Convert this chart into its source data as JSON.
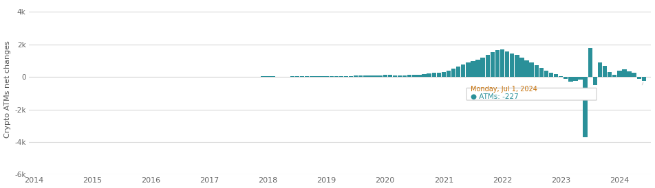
{
  "ylabel": "Crypto ATMs net changes",
  "ylim": [
    -6000,
    4500
  ],
  "yticks": [
    -6000,
    -4000,
    -2000,
    0,
    2000,
    4000
  ],
  "ytick_labels": [
    "-6k",
    "-4k",
    "-2k",
    "0",
    "2k",
    "4k"
  ],
  "bar_color": "#2a9099",
  "background_color": "#ffffff",
  "grid_color": "#d8d8d8",
  "tooltip_date": "Monday, Jul 1, 2024",
  "tooltip_value": -227,
  "values": [
    4,
    3,
    3,
    4,
    3,
    3,
    3,
    4,
    4,
    5,
    4,
    3,
    -3,
    -2,
    0,
    1,
    1,
    1,
    0,
    -1,
    0,
    1,
    2,
    1,
    -4,
    -3,
    -2,
    -1,
    0,
    1,
    1,
    2,
    3,
    4,
    5,
    6,
    7,
    6,
    6,
    7,
    8,
    9,
    10,
    12,
    14,
    18,
    22,
    28,
    32,
    28,
    25,
    22,
    26,
    30,
    34,
    38,
    40,
    44,
    42,
    38,
    36,
    40,
    44,
    48,
    56,
    64,
    72,
    76,
    80,
    88,
    96,
    104,
    112,
    116,
    96,
    88,
    104,
    120,
    136,
    152,
    176,
    208,
    240,
    280,
    320,
    400,
    520,
    640,
    760,
    880,
    960,
    1080,
    1200,
    1360,
    1520,
    1640,
    1680,
    1560,
    1440,
    1360,
    1200,
    1040,
    880,
    720,
    560,
    400,
    280,
    160,
    40,
    -120,
    -280,
    -240,
    -160,
    -3700,
    1800,
    -500,
    900,
    700,
    300,
    150,
    400,
    480,
    340,
    280,
    -100,
    -227
  ],
  "xtick_years": [
    "2014",
    "2015",
    "2016",
    "2017",
    "2018",
    "2019",
    "2020",
    "2021",
    "2022",
    "2023",
    "2024"
  ],
  "xtick_positions": [
    0,
    12,
    24,
    36,
    48,
    60,
    72,
    84,
    96,
    108,
    120
  ]
}
